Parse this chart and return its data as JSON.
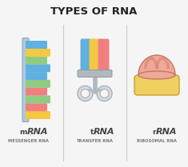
{
  "title": "TYPES OF RNA",
  "title_fontsize": 9.5,
  "background_color": "#f5f5f5",
  "divider_color": "#cccccc",
  "labels": [
    "mRNA",
    "tRNA",
    "rRNA"
  ],
  "sublabels": [
    "MESSENGER RNA",
    "TRANSFER RNA",
    "RIBOSOMAL RNA"
  ],
  "label_prefix": [
    "m",
    "t",
    "r"
  ],
  "label_suffix": [
    "RNA",
    "RNA",
    "RNA"
  ],
  "mrna_backbone_color": "#b0c8dc",
  "mrna_strand_colors": [
    "#f5c842",
    "#f08080",
    "#90cc80",
    "#f08080",
    "#90cc80",
    "#60b0e0",
    "#60b0e0",
    "#90cc80",
    "#f5c842",
    "#60b0e0"
  ],
  "trna_color_left": "#60b0e0",
  "trna_color_mid": "#f5c842",
  "trna_color_right": "#f08080",
  "trna_body_color": "#b0b8c0",
  "rrna_dome_color": "#f0a898",
  "rrna_dome_shadow": "#d88878",
  "rrna_body_color": "#f0d060",
  "rrna_body_edge": "#c8a030"
}
